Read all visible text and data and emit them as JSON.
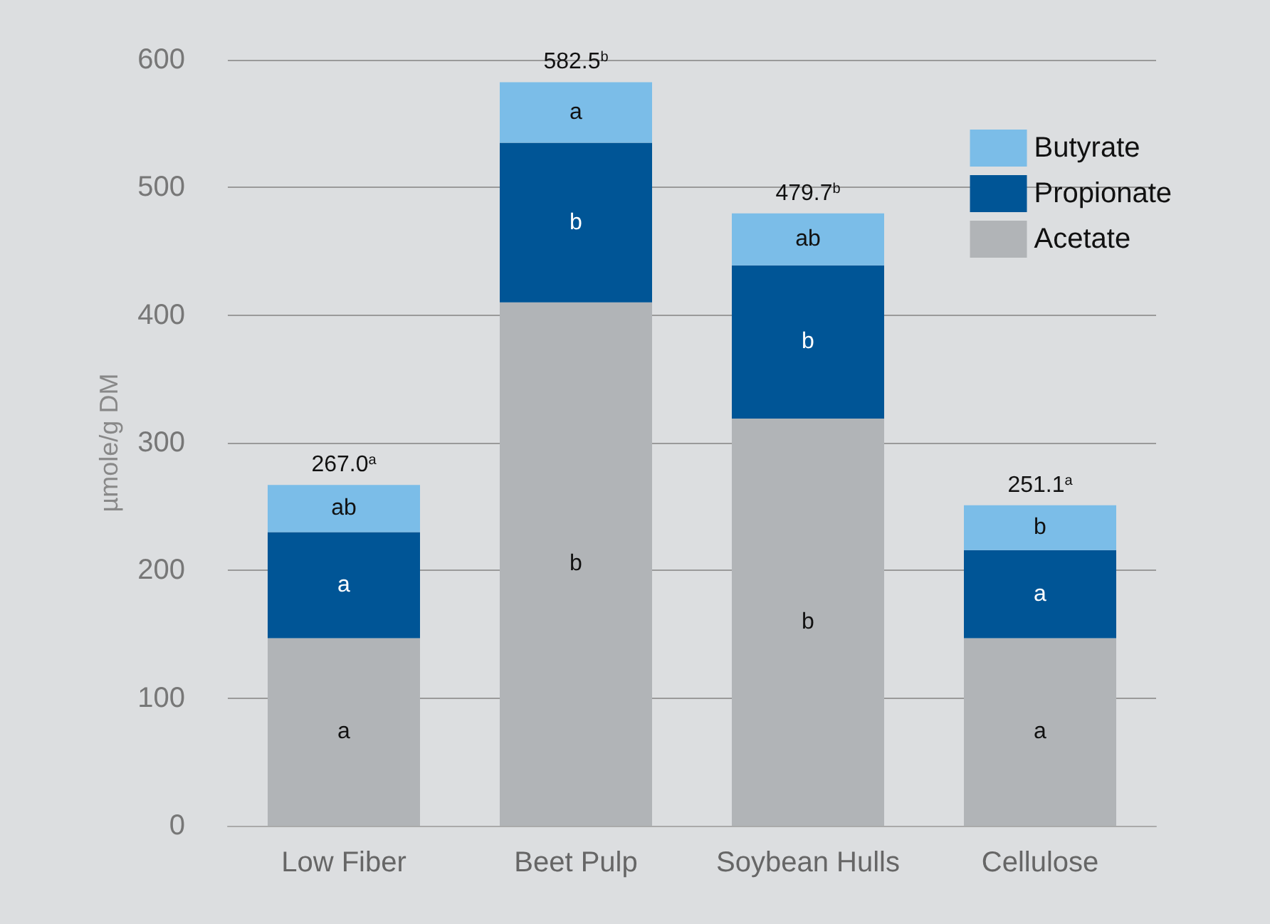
{
  "chart_data": {
    "type": "bar",
    "stacked": true,
    "categories": [
      "Low Fiber",
      "Beet Pulp",
      "Soybean Hulls",
      "Cellulose"
    ],
    "series": [
      {
        "name": "Acetate",
        "color": "#b1b4b7",
        "values": [
          147,
          410,
          319,
          147
        ],
        "value_labels": [
          "a",
          "b",
          "b",
          "a"
        ]
      },
      {
        "name": "Propionate",
        "color": "#005596",
        "values": [
          83,
          125,
          120,
          69
        ],
        "value_labels": [
          "a",
          "b",
          "b",
          "a"
        ]
      },
      {
        "name": "Butyrate",
        "color": "#7bbde8",
        "values": [
          37,
          47.5,
          40.7,
          35.1
        ],
        "value_labels": [
          "ab",
          "a",
          "ab",
          "b"
        ]
      }
    ],
    "totals": [
      "267.0$^{a}$",
      "582.5$^{b}$",
      "479.7$^{b}$",
      "251.1$^{a}$"
    ],
    "ylabel": "µmole/g DM",
    "ylim": [
      0,
      600
    ],
    "yticks": [
      0,
      100,
      200,
      300,
      400,
      500,
      600
    ],
    "grid": "y",
    "legend": "top right"
  }
}
